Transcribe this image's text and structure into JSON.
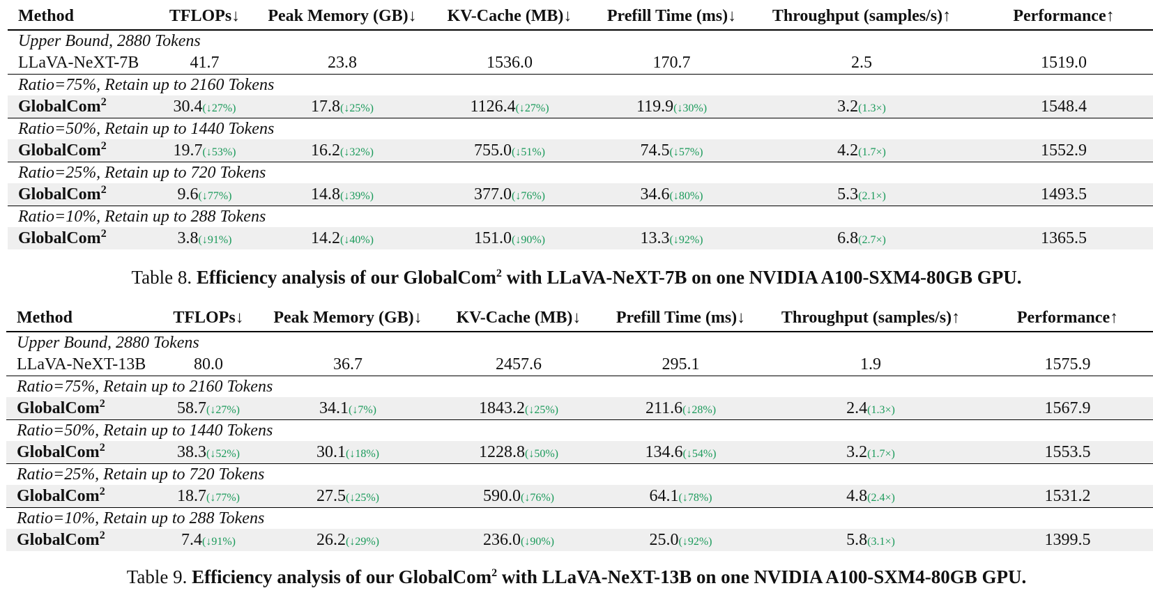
{
  "tables": [
    {
      "caption_label": "Table 8.",
      "caption_pre": "Efficiency analysis of our GlobalCom",
      "caption_sup": "2",
      "caption_post": " with LLaVA-NeXT-7B on one NVIDIA A100-SXM4-80GB GPU.",
      "headers": [
        "Method",
        "TFLOPs↓",
        "Peak Memory (GB)↓",
        "KV-Cache (MB)↓",
        "Prefill Time (ms)↓",
        "Throughput (samples/s)↑",
        "Performance↑"
      ],
      "sections": [
        {
          "title": "Upper Bound, 2880 Tokens",
          "method": "LLaVA-NeXT-7B",
          "method_sup": "",
          "bold": false,
          "cells": [
            {
              "v": "41.7",
              "d": ""
            },
            {
              "v": "23.8",
              "d": ""
            },
            {
              "v": "1536.0",
              "d": ""
            },
            {
              "v": "170.7",
              "d": ""
            },
            {
              "v": "2.5",
              "d": ""
            },
            {
              "v": "1519.0",
              "d": ""
            }
          ]
        },
        {
          "title": "Ratio=75%, Retain up to 2160 Tokens",
          "method": "GlobalCom",
          "method_sup": "2",
          "bold": true,
          "cells": [
            {
              "v": "30.4",
              "d": "(↓27%)"
            },
            {
              "v": "17.8",
              "d": "(↓25%)"
            },
            {
              "v": "1126.4",
              "d": "(↓27%)"
            },
            {
              "v": "119.9",
              "d": "(↓30%)"
            },
            {
              "v": "3.2",
              "d": "(1.3×)"
            },
            {
              "v": "1548.4",
              "d": ""
            }
          ]
        },
        {
          "title": "Ratio=50%, Retain up to 1440 Tokens",
          "method": "GlobalCom",
          "method_sup": "2",
          "bold": true,
          "cells": [
            {
              "v": "19.7",
              "d": "(↓53%)"
            },
            {
              "v": "16.2",
              "d": "(↓32%)"
            },
            {
              "v": "755.0",
              "d": "(↓51%)"
            },
            {
              "v": "74.5",
              "d": "(↓57%)"
            },
            {
              "v": "4.2",
              "d": "(1.7×)"
            },
            {
              "v": "1552.9",
              "d": ""
            }
          ]
        },
        {
          "title": "Ratio=25%, Retain up to 720 Tokens",
          "method": "GlobalCom",
          "method_sup": "2",
          "bold": true,
          "cells": [
            {
              "v": "9.6",
              "d": "(↓77%)"
            },
            {
              "v": "14.8",
              "d": "(↓39%)"
            },
            {
              "v": "377.0",
              "d": "(↓76%)"
            },
            {
              "v": "34.6",
              "d": "(↓80%)"
            },
            {
              "v": "5.3",
              "d": "(2.1×)"
            },
            {
              "v": "1493.5",
              "d": ""
            }
          ]
        },
        {
          "title": "Ratio=10%, Retain up to 288 Tokens",
          "method": "GlobalCom",
          "method_sup": "2",
          "bold": true,
          "cells": [
            {
              "v": "3.8",
              "d": "(↓91%)"
            },
            {
              "v": "14.2",
              "d": "(↓40%)"
            },
            {
              "v": "151.0",
              "d": "(↓90%)"
            },
            {
              "v": "13.3",
              "d": "(↓92%)"
            },
            {
              "v": "6.8",
              "d": "(2.7×)"
            },
            {
              "v": "1365.5",
              "d": ""
            }
          ]
        }
      ]
    },
    {
      "caption_label": "Table 9.",
      "caption_pre": "Efficiency analysis of our GlobalCom",
      "caption_sup": "2",
      "caption_post": " with LLaVA-NeXT-13B on one NVIDIA A100-SXM4-80GB GPU.",
      "headers": [
        "Method",
        "TFLOPs↓",
        "Peak Memory (GB)↓",
        "KV-Cache (MB)↓",
        "Prefill Time (ms)↓",
        "Throughput (samples/s)↑",
        "Performance↑"
      ],
      "sections": [
        {
          "title": "Upper Bound, 2880 Tokens",
          "method": "LLaVA-NeXT-13B",
          "method_sup": "",
          "bold": false,
          "cells": [
            {
              "v": "80.0",
              "d": ""
            },
            {
              "v": "36.7",
              "d": ""
            },
            {
              "v": "2457.6",
              "d": ""
            },
            {
              "v": "295.1",
              "d": ""
            },
            {
              "v": "1.9",
              "d": ""
            },
            {
              "v": "1575.9",
              "d": ""
            }
          ]
        },
        {
          "title": "Ratio=75%, Retain up to 2160 Tokens",
          "method": "GlobalCom",
          "method_sup": "2",
          "bold": true,
          "cells": [
            {
              "v": "58.7",
              "d": "(↓27%)"
            },
            {
              "v": "34.1",
              "d": "(↓7%)"
            },
            {
              "v": "1843.2",
              "d": "(↓25%)"
            },
            {
              "v": "211.6",
              "d": "(↓28%)"
            },
            {
              "v": "2.4",
              "d": "(1.3×)"
            },
            {
              "v": "1567.9",
              "d": ""
            }
          ]
        },
        {
          "title": "Ratio=50%, Retain up to 1440 Tokens",
          "method": "GlobalCom",
          "method_sup": "2",
          "bold": true,
          "cells": [
            {
              "v": "38.3",
              "d": "(↓52%)"
            },
            {
              "v": "30.1",
              "d": "(↓18%)"
            },
            {
              "v": "1228.8",
              "d": "(↓50%)"
            },
            {
              "v": "134.6",
              "d": "(↓54%)"
            },
            {
              "v": "3.2",
              "d": "(1.7×)"
            },
            {
              "v": "1553.5",
              "d": ""
            }
          ]
        },
        {
          "title": "Ratio=25%, Retain up to 720 Tokens",
          "method": "GlobalCom",
          "method_sup": "2",
          "bold": true,
          "cells": [
            {
              "v": "18.7",
              "d": "(↓77%)"
            },
            {
              "v": "27.5",
              "d": "(↓25%)"
            },
            {
              "v": "590.0",
              "d": "(↓76%)"
            },
            {
              "v": "64.1",
              "d": "(↓78%)"
            },
            {
              "v": "4.8",
              "d": "(2.4×)"
            },
            {
              "v": "1531.2",
              "d": ""
            }
          ]
        },
        {
          "title": "Ratio=10%, Retain up to 288 Tokens",
          "method": "GlobalCom",
          "method_sup": "2",
          "bold": true,
          "cells": [
            {
              "v": "7.4",
              "d": "(↓91%)"
            },
            {
              "v": "26.2",
              "d": "(↓29%)"
            },
            {
              "v": "236.0",
              "d": "(↓90%)"
            },
            {
              "v": "25.0",
              "d": "(↓92%)"
            },
            {
              "v": "5.8",
              "d": "(3.1×)"
            },
            {
              "v": "1399.5",
              "d": ""
            }
          ]
        }
      ]
    }
  ]
}
